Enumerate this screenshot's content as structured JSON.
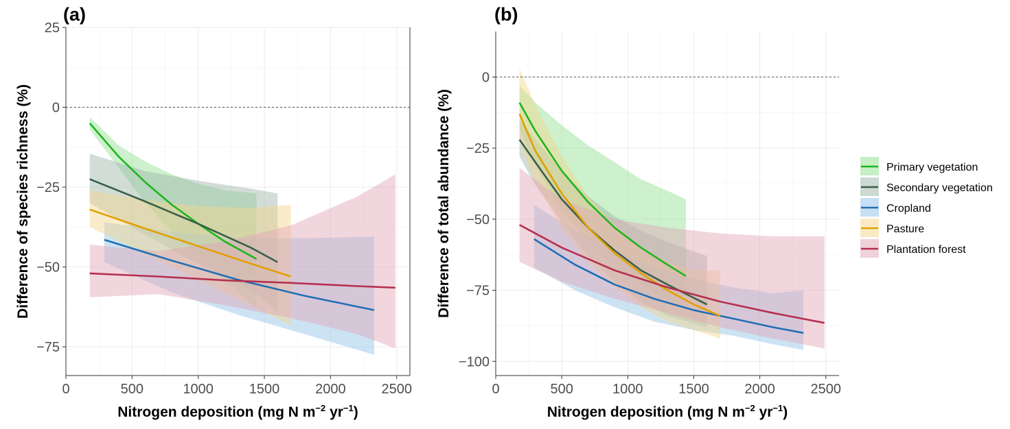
{
  "series_styles": [
    {
      "name": "Primary vegetation",
      "line": "#1db51d",
      "fill": "#8ee08e"
    },
    {
      "name": "Secondary vegetation",
      "line": "#3a5f4a",
      "fill": "#9cb3a8"
    },
    {
      "name": "Cropland",
      "line": "#1f6fb5",
      "fill": "#8fc0e6"
    },
    {
      "name": "Pasture",
      "line": "#e0a000",
      "fill": "#f5d58a"
    },
    {
      "name": "Plantation forest",
      "line": "#b5304f",
      "fill": "#e3a3b5"
    }
  ],
  "chart_data": [
    {
      "type": "line",
      "panel_label": "(a)",
      "xlabel": "Nitrogen deposition (mg N m",
      "xlabel_sup1": "−2",
      "xlabel_mid": " yr",
      "xlabel_sup2": "−1",
      "xlabel_end": ")",
      "ylabel": "Difference of species richness (%)",
      "xlim": [
        0,
        2600
      ],
      "ylim": [
        -84,
        25
      ],
      "xticks": [
        0,
        500,
        1000,
        1500,
        2000,
        2500
      ],
      "xtick_labels": [
        "0",
        "500",
        "1000",
        "1500",
        "2000",
        "2500"
      ],
      "yticks": [
        -75,
        -50,
        -25,
        0,
        25
      ],
      "ytick_labels": [
        "−75",
        "−50",
        "−25",
        "0",
        "25"
      ],
      "reference_line_y": 0,
      "grid": true,
      "panel_border": true,
      "series": [
        {
          "name": "Primary vegetation",
          "x": [
            180,
            400,
            600,
            800,
            1000,
            1200,
            1440
          ],
          "y": [
            -5,
            -15.5,
            -23.5,
            -30.5,
            -36.5,
            -42,
            -47.5
          ],
          "lower": [
            -7,
            -19,
            -30,
            -39,
            -47,
            -54,
            -63
          ],
          "upper": [
            -3,
            -12,
            -17,
            -21,
            -24,
            -26,
            -27
          ]
        },
        {
          "name": "Secondary vegetation",
          "x": [
            180,
            600,
            1000,
            1400,
            1600
          ],
          "y": [
            -22.5,
            -29.5,
            -36.5,
            -44,
            -48.5
          ],
          "lower": [
            -30,
            -40,
            -49,
            -57,
            -64
          ],
          "upper": [
            -14.5,
            -20,
            -23,
            -25.5,
            -27
          ]
        },
        {
          "name": "Cropland",
          "x": [
            290,
            800,
            1300,
            1800,
            2330
          ],
          "y": [
            -41.5,
            -48,
            -54,
            -59,
            -63.5
          ],
          "lower": [
            -48.5,
            -58,
            -65,
            -71,
            -77.5
          ],
          "upper": [
            -36,
            -39,
            -41,
            -41,
            -40.5
          ]
        },
        {
          "name": "Pasture",
          "x": [
            180,
            600,
            1000,
            1400,
            1700
          ],
          "y": [
            -32,
            -38,
            -43.5,
            -49,
            -53
          ],
          "lower": [
            -37.5,
            -46,
            -54,
            -62,
            -68.5
          ],
          "upper": [
            -26,
            -29,
            -31,
            -31.5,
            -30.5
          ]
        },
        {
          "name": "Plantation forest",
          "x": [
            180,
            700,
            1200,
            1700,
            2200,
            2490
          ],
          "y": [
            -52,
            -53,
            -54.2,
            -55,
            -56,
            -56.5
          ],
          "lower": [
            -59.5,
            -58.5,
            -62,
            -66,
            -71,
            -75.5
          ],
          "upper": [
            -43,
            -45,
            -42,
            -37,
            -28,
            -21
          ]
        }
      ]
    },
    {
      "type": "line",
      "panel_label": "(b)",
      "xlabel": "Nitrogen deposition (mg N m",
      "xlabel_sup1": "−2",
      "xlabel_mid": " yr",
      "xlabel_sup2": "−1",
      "xlabel_end": ")",
      "ylabel": "Difference of total abundance (%)",
      "xlim": [
        0,
        2600
      ],
      "ylim": [
        -105,
        16
      ],
      "xticks": [
        0,
        500,
        1000,
        1500,
        2000,
        2500
      ],
      "xtick_labels": [
        "0",
        "500",
        "1000",
        "1500",
        "2000",
        "2500"
      ],
      "yticks": [
        -100,
        -75,
        -50,
        -25,
        0
      ],
      "ytick_labels": [
        "−100",
        "−75",
        "−50",
        "−25",
        "0"
      ],
      "reference_line_y": 0,
      "grid": true,
      "panel_border": false,
      "series": [
        {
          "name": "Primary vegetation",
          "x": [
            180,
            300,
            500,
            700,
            900,
            1100,
            1300,
            1440
          ],
          "y": [
            -9,
            -19,
            -33,
            -44,
            -53,
            -60,
            -66,
            -70
          ],
          "lower": [
            -18,
            -31,
            -47,
            -58,
            -67,
            -73,
            -79,
            -82
          ],
          "upper": [
            -3,
            -9,
            -17,
            -24,
            -30,
            -36,
            -40,
            -43
          ]
        },
        {
          "name": "Secondary vegetation",
          "x": [
            180,
            300,
            500,
            700,
            900,
            1100,
            1300,
            1600
          ],
          "y": [
            -22,
            -30,
            -43,
            -53,
            -61,
            -68,
            -73,
            -80
          ],
          "lower": [
            -28,
            -38,
            -51,
            -63,
            -72,
            -79,
            -84,
            -88
          ],
          "upper": [
            -15,
            -22,
            -33,
            -42,
            -49,
            -54,
            -58,
            -63
          ]
        },
        {
          "name": "Cropland",
          "x": [
            290,
            600,
            900,
            1200,
            1500,
            1800,
            2100,
            2330
          ],
          "y": [
            -57,
            -66,
            -73,
            -78,
            -82,
            -85,
            -88,
            -90
          ],
          "lower": [
            -67,
            -75,
            -81,
            -86,
            -89,
            -91,
            -94,
            -96
          ],
          "upper": [
            -45,
            -54,
            -61,
            -67,
            -71,
            -74,
            -76,
            -75
          ]
        },
        {
          "name": "Pasture",
          "x": [
            180,
            300,
            500,
            700,
            900,
            1100,
            1300,
            1500,
            1700
          ],
          "y": [
            -13,
            -26,
            -41,
            -53,
            -62,
            -69,
            -75,
            -80,
            -84
          ],
          "lower": [
            -23,
            -37,
            -53,
            -65,
            -74,
            -81,
            -86,
            -89,
            -92
          ],
          "upper": [
            3,
            -10,
            -28,
            -42,
            -52,
            -60,
            -65,
            -68,
            -68
          ]
        },
        {
          "name": "Plantation forest",
          "x": [
            180,
            500,
            900,
            1300,
            1700,
            2100,
            2490
          ],
          "y": [
            -52,
            -60,
            -68,
            -74,
            -79,
            -83,
            -86.5
          ],
          "lower": [
            -65,
            -72,
            -78,
            -83,
            -88,
            -92,
            -95.5
          ],
          "upper": [
            -32,
            -43,
            -50,
            -53,
            -55,
            -56,
            -56
          ]
        }
      ]
    }
  ]
}
